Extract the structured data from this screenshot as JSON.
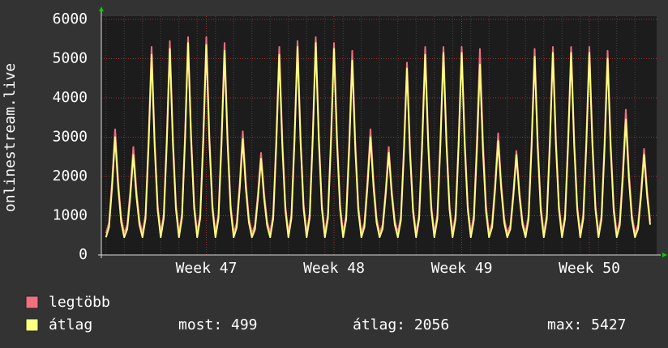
{
  "chart_data": {
    "type": "line",
    "y_label": "onlinestream.live",
    "categories": [
      null,
      null,
      null,
      null,
      null,
      null,
      null,
      null,
      null,
      null,
      null,
      null,
      null,
      null,
      null,
      null,
      null,
      null,
      null,
      null,
      null,
      null,
      null,
      null,
      null,
      null,
      null,
      null,
      null,
      null,
      null,
      null,
      null,
      "Week 47",
      null,
      null,
      null,
      null,
      null,
      null,
      null,
      null,
      null,
      null,
      null,
      null,
      null,
      null,
      null,
      null,
      null,
      null,
      null,
      null,
      null,
      null,
      null,
      null,
      null,
      null,
      null,
      null,
      null,
      null,
      null,
      null,
      null,
      null,
      null,
      null,
      null,
      null,
      null,
      null,
      null,
      "Week 48",
      null,
      null,
      null,
      null,
      null,
      null,
      null,
      null,
      null,
      null,
      null,
      null,
      null,
      null,
      null,
      null,
      null,
      null,
      null,
      null,
      null,
      null,
      null,
      null,
      null,
      null,
      null,
      null,
      null,
      null,
      null,
      null,
      null,
      null,
      null,
      null,
      null,
      null,
      null,
      null,
      null,
      "Week 49",
      null,
      null,
      null,
      null,
      null,
      null,
      null,
      null,
      null,
      null,
      null,
      null,
      null,
      null,
      null,
      null,
      null,
      null,
      null,
      null,
      null,
      null,
      null,
      null,
      null,
      null,
      null,
      null,
      null,
      null,
      null,
      null,
      null,
      null,
      null,
      null,
      null,
      null,
      null,
      null,
      null,
      "Week 50",
      null,
      null,
      null,
      null,
      null,
      null,
      null,
      null,
      null,
      null,
      null,
      null,
      null,
      null,
      null,
      null,
      null,
      null,
      null,
      null
    ],
    "series": [
      {
        "name": "legtöbb",
        "color": "#f07080",
        "values": [
          550,
          820,
          1880,
          3200,
          1880,
          950,
          550,
          770,
          1650,
          2750,
          1650,
          880,
          550,
          1030,
          2930,
          5300,
          2930,
          1260,
          550,
          1040,
          3000,
          5450,
          3000,
          1290,
          550,
          1050,
          3050,
          5550,
          3050,
          1300,
          550,
          1050,
          3050,
          5550,
          3050,
          1300,
          550,
          1040,
          2980,
          5400,
          2980,
          1280,
          550,
          810,
          1850,
          3150,
          1850,
          940,
          550,
          760,
          1580,
          2600,
          1580,
          860,
          550,
          1030,
          2930,
          5300,
          2930,
          1260,
          550,
          1040,
          3000,
          5450,
          3000,
          1290,
          550,
          1050,
          3050,
          5550,
          3050,
          1300,
          550,
          1040,
          2980,
          5400,
          2980,
          1280,
          550,
          1020,
          2880,
          5200,
          2880,
          1250,
          550,
          820,
          1880,
          3200,
          1880,
          950,
          550,
          770,
          1650,
          2750,
          1650,
          880,
          550,
          990,
          2730,
          4900,
          2730,
          1200,
          550,
          1030,
          2930,
          5300,
          2930,
          1260,
          550,
          1030,
          2930,
          5300,
          2930,
          1260,
          550,
          1030,
          2930,
          5300,
          2930,
          1260,
          550,
          1020,
          2900,
          5250,
          2900,
          1260,
          550,
          810,
          1830,
          3100,
          1830,
          930,
          550,
          760,
          1600,
          2650,
          1600,
          870,
          550,
          1020,
          2900,
          5250,
          2900,
          1260,
          550,
          1030,
          2930,
          5300,
          2930,
          1260,
          550,
          1030,
          2930,
          5300,
          2930,
          1260,
          550,
          1030,
          2930,
          5300,
          2930,
          1260,
          550,
          1020,
          2880,
          5200,
          2880,
          1250,
          550,
          870,
          2130,
          3700,
          2130,
          1020,
          550,
          770,
          1630,
          2700,
          1630,
          870
        ]
      },
      {
        "name": "átlag",
        "color": "#ffff80",
        "values": [
          450,
          710,
          1730,
          3000,
          1730,
          830,
          450,
          660,
          1500,
          2550,
          1500,
          770,
          450,
          920,
          2780,
          5100,
          2780,
          1150,
          450,
          930,
          2850,
          5250,
          2850,
          1170,
          450,
          950,
          2930,
          5400,
          2930,
          1190,
          450,
          940,
          2900,
          5350,
          2900,
          1190,
          450,
          930,
          2830,
          5200,
          2830,
          1160,
          450,
          700,
          1700,
          2950,
          1700,
          830,
          450,
          650,
          1450,
          2450,
          1450,
          750,
          450,
          920,
          2780,
          5100,
          2780,
          1150,
          450,
          940,
          2880,
          5300,
          2880,
          1180,
          450,
          950,
          2930,
          5400,
          2930,
          1190,
          450,
          930,
          2850,
          5250,
          2850,
          1170,
          450,
          900,
          2700,
          4950,
          2700,
          1130,
          450,
          710,
          1730,
          3000,
          1730,
          830,
          450,
          670,
          1530,
          2600,
          1530,
          770,
          450,
          880,
          2600,
          4750,
          2600,
          1100,
          450,
          920,
          2780,
          5100,
          2780,
          1150,
          450,
          920,
          2800,
          5150,
          2800,
          1160,
          450,
          920,
          2800,
          5150,
          2800,
          1160,
          450,
          890,
          2650,
          4850,
          2650,
          1110,
          450,
          700,
          1680,
          2900,
          1680,
          820,
          450,
          660,
          1500,
          2550,
          1500,
          770,
          450,
          910,
          2750,
          5050,
          2750,
          1140,
          450,
          920,
          2800,
          5150,
          2800,
          1160,
          450,
          920,
          2800,
          5150,
          2800,
          1160,
          450,
          920,
          2800,
          5150,
          2800,
          1160,
          450,
          910,
          2730,
          5000,
          2730,
          1130,
          450,
          750,
          1950,
          3450,
          1950,
          900,
          450,
          660,
          1500,
          2550,
          1500,
          770
        ]
      }
    ],
    "ylim": [
      0,
      6000
    ],
    "yticks": [
      0,
      1000,
      2000,
      3000,
      4000,
      5000,
      6000
    ],
    "grid": true,
    "legend_stats": [
      {
        "label": "most:",
        "value": 499
      },
      {
        "label": "átlag:",
        "value": 2056
      },
      {
        "label": "max:",
        "value": 5427
      }
    ]
  }
}
